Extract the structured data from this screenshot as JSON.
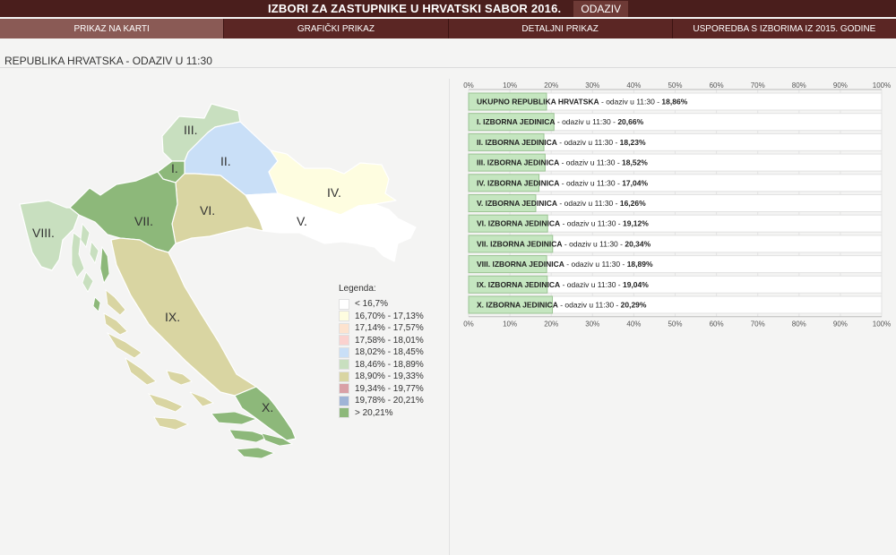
{
  "header": {
    "title": "IZBORI ZA ZASTUPNIKE U HRVATSKI SABOR 2016.",
    "button_label": "ODAZIV"
  },
  "tabs": [
    {
      "label": "PRIKAZ NA KARTI",
      "active": true
    },
    {
      "label": "GRAFIČKI PRIKAZ",
      "active": false
    },
    {
      "label": "DETALJNI PRIKAZ",
      "active": false
    },
    {
      "label": "USPOREDBA S IZBORIMA IZ 2015. GODINE",
      "active": false
    }
  ],
  "subtitle": "REPUBLIKA HRVATSKA - ODAZIV U 11:30",
  "map": {
    "regions": [
      {
        "label": "I.",
        "color": "#8db87a"
      },
      {
        "label": "II.",
        "color": "#c9dff7"
      },
      {
        "label": "III.",
        "color": "#c8dfbf"
      },
      {
        "label": "IV.",
        "color": "#fefde0"
      },
      {
        "label": "V.",
        "color": "#ffffff"
      },
      {
        "label": "VI.",
        "color": "#d9d5a2"
      },
      {
        "label": "VII.",
        "color": "#8db87a"
      },
      {
        "label": "VIII.",
        "color": "#c8dfbf"
      },
      {
        "label": "IX.",
        "color": "#d9d5a2"
      },
      {
        "label": "X.",
        "color": "#8db87a"
      }
    ]
  },
  "legend": {
    "title": "Legenda:",
    "items": [
      {
        "label": "< 16,7%",
        "color": "#ffffff"
      },
      {
        "label": "16,70% - 17,13%",
        "color": "#fefde0"
      },
      {
        "label": "17,14% - 17,57%",
        "color": "#fde3cf"
      },
      {
        "label": "17,58% - 18,01%",
        "color": "#fbd2cf"
      },
      {
        "label": "18,02% - 18,45%",
        "color": "#c9dff7"
      },
      {
        "label": "18,46% - 18,89%",
        "color": "#c8dfbf"
      },
      {
        "label": "18,90% - 19,33%",
        "color": "#d9d5a2"
      },
      {
        "label": "19,34% - 19,77%",
        "color": "#d9a0a6"
      },
      {
        "label": "19,78% - 20,21%",
        "color": "#9fb4d6"
      },
      {
        "label": "> 20,21%",
        "color": "#8db87a"
      }
    ]
  },
  "chart_data": {
    "type": "bar",
    "orientation": "horizontal",
    "xlim": [
      0,
      100
    ],
    "ticks": [
      "0%",
      "10%",
      "20%",
      "30%",
      "40%",
      "50%",
      "60%",
      "70%",
      "80%",
      "90%",
      "100%"
    ],
    "bar_color": "#c5e6c0",
    "items": [
      {
        "name": "UKUPNO REPUBLIKA HRVATSKA",
        "suffix": " - odaziv u 11:30 - ",
        "value_label": "18,86%",
        "value": 18.86
      },
      {
        "name": "I. IZBORNA JEDINICA",
        "suffix": " - odaziv u 11:30 - ",
        "value_label": "20,66%",
        "value": 20.66
      },
      {
        "name": "II. IZBORNA JEDINICA",
        "suffix": " - odaziv u 11:30 - ",
        "value_label": "18,23%",
        "value": 18.23
      },
      {
        "name": "III. IZBORNA JEDINICA",
        "suffix": " - odaziv u 11:30 - ",
        "value_label": "18,52%",
        "value": 18.52
      },
      {
        "name": "IV. IZBORNA JEDINICA",
        "suffix": " - odaziv u 11:30 - ",
        "value_label": "17,04%",
        "value": 17.04
      },
      {
        "name": "V. IZBORNA JEDINICA",
        "suffix": " - odaziv u 11:30 - ",
        "value_label": "16,26%",
        "value": 16.26
      },
      {
        "name": "VI. IZBORNA JEDINICA",
        "suffix": " - odaziv u 11:30 - ",
        "value_label": "19,12%",
        "value": 19.12
      },
      {
        "name": "VII. IZBORNA JEDINICA",
        "suffix": " - odaziv u 11:30 - ",
        "value_label": "20,34%",
        "value": 20.34
      },
      {
        "name": "VIII. IZBORNA JEDINICA",
        "suffix": " - odaziv u 11:30 - ",
        "value_label": "18,89%",
        "value": 18.89
      },
      {
        "name": "IX. IZBORNA JEDINICA",
        "suffix": " - odaziv u 11:30 - ",
        "value_label": "19,04%",
        "value": 19.04
      },
      {
        "name": "X. IZBORNA JEDINICA",
        "suffix": " - odaziv u 11:30 - ",
        "value_label": "20,29%",
        "value": 20.29
      }
    ]
  }
}
